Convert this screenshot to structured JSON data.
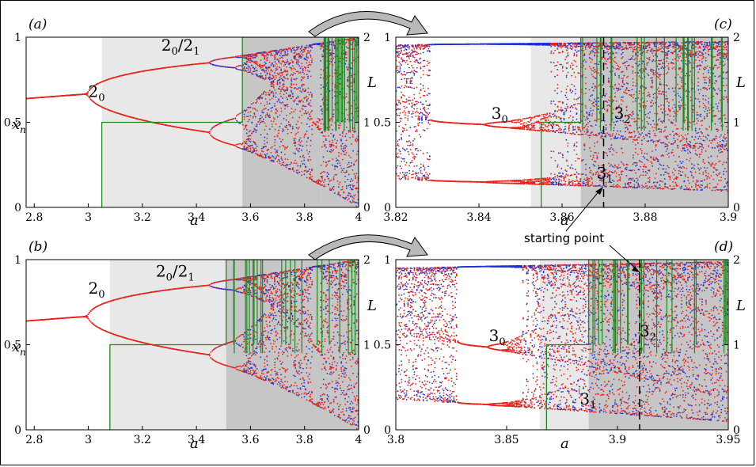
{
  "colors": {
    "red": "#e8221b",
    "blue": "#1f2fd8",
    "green": "#1e8a1e",
    "light_gray": "#e8e8e8",
    "dark_gray": "#c6c6c6",
    "black": "#000000"
  },
  "chart_data": [
    {
      "panel": "(a)",
      "type": "scatter",
      "xlabel": "a",
      "ylabel": "x_n",
      "y2label": "L",
      "xlim": [
        2.77,
        4.0
      ],
      "ylim": [
        0,
        1
      ],
      "y2lim": [
        0,
        2
      ],
      "xticks": [
        "2.8",
        "3",
        "3.2",
        "3.4",
        "3.6",
        "3.8",
        "4"
      ],
      "yticks": [
        "0",
        "0.5",
        "1"
      ],
      "y2ticks": [
        "0",
        "1",
        "2"
      ],
      "regions": [
        {
          "from": 3.05,
          "to": 3.57,
          "shade": "light"
        },
        {
          "from": 3.57,
          "to": 3.86,
          "shade": "dark"
        },
        {
          "from": 3.86,
          "to": 4.0,
          "shade": "dark"
        }
      ],
      "annotations": [
        {
          "base": "2",
          "sub": "0",
          "x": 3.0,
          "y": 0.65
        },
        {
          "base": "2",
          "sub": "0",
          "sep": "/",
          "base2": "2",
          "sub2": "1",
          "x": 3.27,
          "y": 0.92
        }
      ],
      "series": [
        {
          "name": "L",
          "color": "green",
          "step": [
            [
              3.05,
              0
            ],
            [
              3.05,
              1
            ],
            [
              3.57,
              1
            ],
            [
              3.57,
              2
            ],
            [
              4.0,
              2
            ]
          ]
        }
      ]
    },
    {
      "panel": "(b)",
      "type": "scatter",
      "xlabel": "a",
      "ylabel": "x_n",
      "y2label": "L",
      "xlim": [
        2.77,
        4.0
      ],
      "ylim": [
        0,
        1
      ],
      "y2lim": [
        0,
        2
      ],
      "xticks": [
        "2.8",
        "3",
        "3.2",
        "3.4",
        "3.6",
        "3.8",
        "4"
      ],
      "yticks": [
        "0",
        "0.5",
        "1"
      ],
      "y2ticks": [
        "0",
        "1",
        "2"
      ],
      "regions": [
        {
          "from": 3.08,
          "to": 3.51,
          "shade": "light"
        },
        {
          "from": 3.51,
          "to": 4.0,
          "shade": "dark"
        }
      ],
      "annotations": [
        {
          "base": "2",
          "sub": "0",
          "x": 3.0,
          "y": 0.8
        },
        {
          "base": "2",
          "sub": "0",
          "sep": "/",
          "base2": "2",
          "sub2": "1",
          "x": 3.25,
          "y": 0.9
        }
      ],
      "series": [
        {
          "name": "L",
          "color": "green",
          "step": [
            [
              3.08,
              0
            ],
            [
              3.08,
              1
            ],
            [
              3.51,
              1
            ],
            [
              3.51,
              2
            ],
            [
              4.0,
              2
            ]
          ]
        }
      ]
    },
    {
      "panel": "(c)",
      "type": "scatter",
      "xlabel": "a",
      "ylabel": "",
      "y2label": "L",
      "xlim": [
        3.82,
        3.9
      ],
      "ylim": [
        0,
        1
      ],
      "y2lim": [
        0,
        2
      ],
      "xticks": [
        "3.82",
        "3.84",
        "3.86",
        "3.88",
        "3.9"
      ],
      "yticks": [
        "0",
        "0.5",
        "1"
      ],
      "y2ticks": [
        "0",
        "1",
        "2"
      ],
      "regions": [
        {
          "from": 3.8525,
          "to": 3.8645,
          "shade": "light"
        },
        {
          "from": 3.8645,
          "to": 3.9,
          "shade": "dark"
        }
      ],
      "starting_point": 3.87,
      "annotations": [
        {
          "base": "3",
          "sub": "0",
          "x": 3.843,
          "y": 0.52
        },
        {
          "base": "3",
          "sub": "1",
          "x": 3.8683,
          "y": 0.17
        },
        {
          "base": "3",
          "sub": "2",
          "x": 3.8725,
          "y": 0.52
        }
      ],
      "series": [
        {
          "name": "L",
          "color": "green",
          "step": [
            [
              3.855,
              0
            ],
            [
              3.855,
              1
            ],
            [
              3.8645,
              1
            ],
            [
              3.8645,
              2
            ],
            [
              3.9,
              2
            ]
          ]
        }
      ]
    },
    {
      "panel": "(d)",
      "type": "scatter",
      "xlabel": "a",
      "ylabel": "",
      "y2label": "L",
      "xlim": [
        3.8,
        3.95
      ],
      "ylim": [
        0,
        1
      ],
      "y2lim": [
        0,
        2
      ],
      "xticks": [
        "3.8",
        "3.85",
        "3.9",
        "3.95"
      ],
      "yticks": [
        "0",
        "0.5",
        "1"
      ],
      "y2ticks": [
        "0",
        "1",
        "2"
      ],
      "regions": [
        {
          "from": 3.865,
          "to": 3.887,
          "shade": "light"
        },
        {
          "from": 3.887,
          "to": 3.95,
          "shade": "dark"
        }
      ],
      "starting_point": 3.91,
      "annotations": [
        {
          "base": "3",
          "sub": "0",
          "x": 3.842,
          "y": 0.52
        },
        {
          "base": "3",
          "sub": "1",
          "x": 3.883,
          "y": 0.15
        },
        {
          "base": "3",
          "sub": "2",
          "x": 3.91,
          "y": 0.55
        }
      ],
      "series": [
        {
          "name": "L",
          "color": "green",
          "step": [
            [
              3.868,
              0
            ],
            [
              3.868,
              1
            ],
            [
              3.887,
              1
            ],
            [
              3.887,
              2
            ],
            [
              3.95,
              2
            ]
          ]
        }
      ]
    }
  ],
  "starting_point_label": "starting point"
}
